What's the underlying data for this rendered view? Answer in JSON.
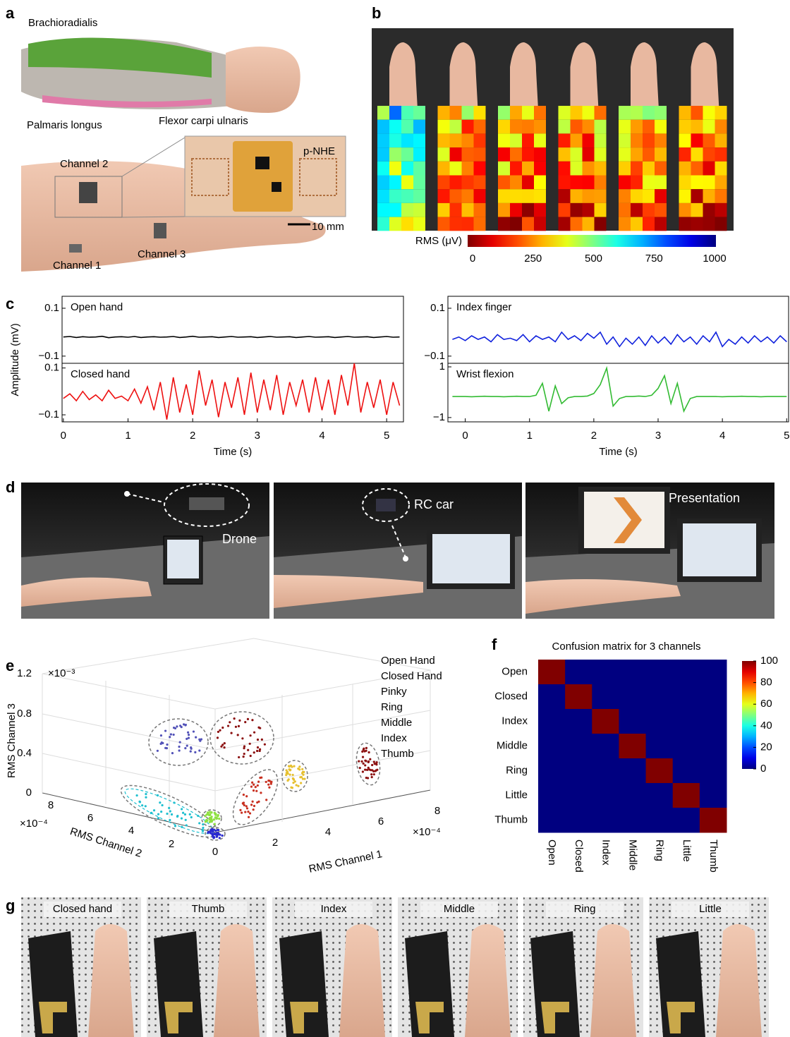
{
  "panel_labels": [
    "a",
    "b",
    "c",
    "d",
    "e",
    "f",
    "g"
  ],
  "a": {
    "muscles": [
      {
        "name": "Brachioradialis",
        "color": "#4e8c2c"
      },
      {
        "name": "Palmaris longus",
        "color": "#2233dd"
      },
      {
        "name": "Flexor carpi ulnaris",
        "color": "#e01010"
      }
    ],
    "device": "p-NHE",
    "scale_bar": "10 mm",
    "channels": [
      "Channel 1",
      "Channel 2",
      "Channel 3"
    ]
  },
  "b": {
    "colorbar": {
      "label": "RMS (μV)",
      "lim": [
        0,
        1000
      ],
      "ticks": [
        0,
        250,
        500,
        750,
        1000
      ],
      "colormap": "jet",
      "reversed": true
    }
  },
  "d": {
    "labels": [
      "Drone",
      "RC car",
      "Presentation"
    ]
  },
  "g": {
    "labels": [
      "Closed hand",
      "Thumb",
      "Index",
      "Middle",
      "Ring",
      "Little"
    ]
  },
  "chart_data": [
    {
      "type": "line",
      "title": "Open hand",
      "y_label": "Amplitude (mV)",
      "x": [
        0,
        0.1,
        0.2,
        0.3,
        0.4,
        0.5,
        0.6,
        0.7,
        0.8,
        0.9,
        1,
        1.1,
        1.2,
        1.3,
        1.4,
        1.5,
        1.6,
        1.7,
        1.8,
        1.9,
        2,
        2.1,
        2.2,
        2.3,
        2.4,
        2.5,
        2.6,
        2.7,
        2.8,
        2.9,
        3,
        3.1,
        3.2,
        3.3,
        3.4,
        3.5,
        3.6,
        3.7,
        3.8,
        3.9,
        4,
        4.1,
        4.2,
        4.3,
        4.4,
        4.5,
        4.6,
        4.7,
        4.8,
        4.9,
        5,
        5.1,
        5.2
      ],
      "series": [
        {
          "color": "#000000",
          "values": [
            -0.02,
            -0.018,
            -0.022,
            -0.019,
            -0.021,
            -0.02,
            -0.017,
            -0.023,
            -0.02,
            -0.019,
            -0.021,
            -0.018,
            -0.022,
            -0.02,
            -0.019,
            -0.021,
            -0.02,
            -0.018,
            -0.022,
            -0.02,
            -0.017,
            -0.021,
            -0.02,
            -0.019,
            -0.022,
            -0.02,
            -0.018,
            -0.021,
            -0.02,
            -0.019,
            -0.022,
            -0.02,
            -0.018,
            -0.021,
            -0.02,
            -0.019,
            -0.022,
            -0.02,
            -0.018,
            -0.021,
            -0.02,
            -0.019,
            -0.022,
            -0.02,
            -0.018,
            -0.021,
            -0.02,
            -0.019,
            -0.022,
            -0.02,
            -0.018,
            -0.021,
            -0.02
          ]
        }
      ],
      "xlim": [
        -0.02,
        5.26
      ],
      "ylim": [
        -0.13,
        0.15
      ],
      "yticks": [
        0.1,
        {
          "value": -0.1,
          "label": "−0.1"
        }
      ]
    },
    {
      "type": "line",
      "title": "Closed hand",
      "x_label": "Time (s)",
      "x": [
        0,
        0.1,
        0.2,
        0.3,
        0.4,
        0.5,
        0.6,
        0.7,
        0.8,
        0.9,
        1,
        1.1,
        1.2,
        1.3,
        1.4,
        1.5,
        1.6,
        1.7,
        1.8,
        1.9,
        2,
        2.1,
        2.2,
        2.3,
        2.4,
        2.5,
        2.6,
        2.7,
        2.8,
        2.9,
        3,
        3.1,
        3.2,
        3.3,
        3.4,
        3.5,
        3.6,
        3.7,
        3.8,
        3.9,
        4,
        4.1,
        4.2,
        4.3,
        4.4,
        4.5,
        4.6,
        4.7,
        4.8,
        4.9,
        5,
        5.1,
        5.2
      ],
      "series": [
        {
          "color": "#ee1111",
          "values": [
            -0.03,
            -0.01,
            -0.04,
            0.0,
            -0.035,
            -0.015,
            -0.04,
            0.005,
            -0.03,
            -0.02,
            -0.04,
            0.01,
            -0.05,
            0.02,
            -0.08,
            0.04,
            -0.12,
            0.06,
            -0.09,
            0.03,
            -0.1,
            0.09,
            -0.06,
            0.05,
            -0.11,
            0.04,
            -0.07,
            0.06,
            -0.1,
            0.08,
            -0.09,
            0.05,
            -0.08,
            0.07,
            -0.1,
            0.04,
            -0.06,
            0.05,
            -0.09,
            0.06,
            -0.08,
            0.05,
            -0.1,
            0.07,
            -0.06,
            0.12,
            -0.09,
            0.04,
            -0.07,
            0.05,
            -0.1,
            0.04,
            -0.06
          ]
        }
      ],
      "xlim": [
        -0.02,
        5.26
      ],
      "ylim": [
        -0.13,
        0.12
      ],
      "yticks": [
        0.1,
        {
          "value": -0.1,
          "label": "−0.1"
        }
      ],
      "xticks": [
        0,
        1,
        2,
        3,
        4,
        5
      ]
    },
    {
      "type": "line",
      "title": "Index finger",
      "x": [
        -0.2,
        -0.1,
        0,
        0.1,
        0.2,
        0.3,
        0.4,
        0.5,
        0.6,
        0.7,
        0.8,
        0.9,
        1,
        1.1,
        1.2,
        1.3,
        1.4,
        1.5,
        1.6,
        1.7,
        1.8,
        1.9,
        2,
        2.1,
        2.2,
        2.3,
        2.4,
        2.5,
        2.6,
        2.7,
        2.8,
        2.9,
        3,
        3.1,
        3.2,
        3.3,
        3.4,
        3.5,
        3.6,
        3.7,
        3.8,
        3.9,
        4,
        4.1,
        4.2,
        4.3,
        4.4,
        4.5,
        4.6,
        4.7,
        4.8,
        4.9,
        5
      ],
      "series": [
        {
          "color": "#1122dd",
          "values": [
            -0.03,
            -0.02,
            -0.035,
            -0.015,
            -0.03,
            -0.02,
            -0.04,
            -0.01,
            -0.03,
            -0.025,
            -0.035,
            -0.01,
            -0.04,
            -0.015,
            -0.03,
            -0.02,
            -0.04,
            0.0,
            -0.03,
            -0.015,
            -0.035,
            -0.005,
            -0.025,
            0.0,
            -0.05,
            -0.02,
            -0.06,
            -0.025,
            -0.05,
            -0.02,
            -0.055,
            -0.015,
            -0.045,
            -0.02,
            -0.05,
            -0.01,
            -0.04,
            -0.02,
            -0.05,
            -0.015,
            -0.04,
            0.0,
            -0.06,
            -0.03,
            -0.05,
            -0.02,
            -0.045,
            -0.015,
            -0.04,
            -0.02,
            -0.045,
            -0.015,
            -0.04
          ]
        }
      ],
      "xlim": [
        -0.27,
        5.03
      ],
      "ylim": [
        -0.13,
        0.15
      ],
      "yticks": [
        0.1,
        {
          "value": -0.1,
          "label": "−0.1"
        }
      ]
    },
    {
      "type": "line",
      "title": "Wrist flexion",
      "x_label": "Time (s)",
      "x": [
        -0.2,
        -0.1,
        0,
        0.1,
        0.2,
        0.3,
        0.4,
        0.5,
        0.6,
        0.7,
        0.8,
        0.9,
        1,
        1.1,
        1.2,
        1.3,
        1.4,
        1.5,
        1.6,
        1.7,
        1.8,
        1.9,
        2,
        2.1,
        2.2,
        2.3,
        2.4,
        2.5,
        2.6,
        2.7,
        2.8,
        2.9,
        3,
        3.1,
        3.2,
        3.3,
        3.4,
        3.5,
        3.6,
        3.7,
        3.8,
        3.9,
        4,
        4.1,
        4.2,
        4.3,
        4.4,
        4.5,
        4.6,
        4.7,
        4.8,
        4.9,
        5
      ],
      "series": [
        {
          "color": "#33bb33",
          "values": [
            -0.17,
            -0.17,
            -0.17,
            -0.18,
            -0.17,
            -0.16,
            -0.17,
            -0.17,
            -0.18,
            -0.17,
            -0.16,
            -0.17,
            -0.17,
            -0.12,
            0.35,
            -0.75,
            0.25,
            -0.45,
            -0.22,
            -0.17,
            -0.17,
            -0.15,
            -0.05,
            0.3,
            0.95,
            -0.55,
            -0.25,
            -0.17,
            -0.17,
            -0.15,
            -0.17,
            -0.12,
            0.15,
            0.65,
            -0.45,
            0.35,
            -0.75,
            -0.25,
            -0.17,
            -0.17,
            -0.17,
            -0.17,
            -0.18,
            -0.17,
            -0.17,
            -0.16,
            -0.17,
            -0.17,
            -0.18,
            -0.17,
            -0.17,
            -0.17,
            -0.17
          ]
        }
      ],
      "xlim": [
        -0.27,
        5.03
      ],
      "ylim": [
        -1.17,
        1.14
      ],
      "yticks": [
        1,
        {
          "value": -1,
          "label": "−1"
        }
      ],
      "xticks": [
        0,
        1,
        2,
        3,
        4,
        5
      ]
    },
    {
      "type": "scatter3d",
      "x_label": "RMS Channel 1",
      "y_label": "RMS Channel 2",
      "z_label": "RMS Channel 3",
      "xticks": [
        0,
        2,
        4,
        6,
        8
      ],
      "yticks": [
        2,
        4,
        6,
        8
      ],
      "zticks": [
        0,
        0.4,
        0.8,
        1.2
      ],
      "x_multiplier": "×10⁻⁴",
      "y_multiplier": "×10⁻⁴",
      "z_multiplier": "×10⁻³",
      "series": [
        {
          "name": "Open Hand",
          "color": "#5252b8"
        },
        {
          "name": "Closed Hand",
          "color": "#8b1010"
        },
        {
          "name": "Pinky",
          "color": "#2a2ad0"
        },
        {
          "name": "Ring",
          "color": "#c83020"
        },
        {
          "name": "Middle",
          "color": "#e6c030"
        },
        {
          "name": "Index",
          "color": "#8ee040"
        },
        {
          "name": "Thumb",
          "color": "#20c0d0"
        }
      ]
    },
    {
      "type": "heatmap",
      "title": "Confusion matrix for 3 channels",
      "rows": [
        "Open",
        "Closed",
        "Index",
        "Middle",
        "Ring",
        "Little",
        "Thumb"
      ],
      "columns": [
        "Open",
        "Closed",
        "Index",
        "Middle",
        "Ring",
        "Little",
        "Thumb"
      ],
      "values": [
        [
          100,
          0,
          0,
          0,
          0,
          0,
          0
        ],
        [
          0,
          100,
          0,
          0,
          0,
          0,
          0
        ],
        [
          0,
          0,
          100,
          0,
          0,
          0,
          0
        ],
        [
          0,
          0,
          0,
          100,
          0,
          0,
          0
        ],
        [
          0,
          0,
          0,
          0,
          100,
          0,
          0
        ],
        [
          0,
          0,
          0,
          0,
          0,
          100,
          0
        ],
        [
          0,
          0,
          0,
          0,
          0,
          0,
          100
        ]
      ],
      "colormap": "jet",
      "clim": [
        0,
        100
      ],
      "colorbar_ticks": [
        0,
        20,
        40,
        60,
        80,
        100
      ]
    }
  ]
}
